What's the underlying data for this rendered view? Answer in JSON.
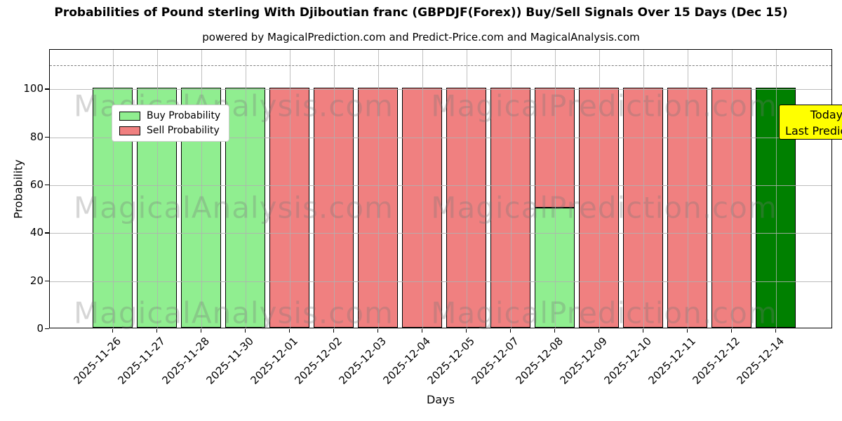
{
  "figure": {
    "title": "Probabilities of Pound sterling With Djiboutian franc (GBPDJF(Forex)) Buy/Sell Signals Over 15 Days (Dec 15)",
    "subtitle": "powered by MagicalPrediction.com and Predict-Price.com and MagicalAnalysis.com",
    "xlabel": "Days",
    "ylabel": "Probability",
    "annotation": {
      "line1": "Today",
      "line2": "Last Prediction",
      "bg_color": "#ffff00"
    },
    "watermarks": [
      "MagicalAnalysis.com",
      "MagicalPrediction.com"
    ]
  },
  "chart_data": {
    "type": "bar",
    "stacked": true,
    "title": "Probabilities of Pound sterling With Djiboutian franc (GBPDJF(Forex)) Buy/Sell Signals Over 15 Days (Dec 15)",
    "xlabel": "Days",
    "ylabel": "Probability",
    "categories": [
      "2025-11-26",
      "2025-11-27",
      "2025-11-28",
      "2025-11-30",
      "2025-12-01",
      "2025-12-02",
      "2025-12-03",
      "2025-12-04",
      "2025-12-05",
      "2025-12-07",
      "2025-12-08",
      "2025-12-09",
      "2025-12-10",
      "2025-12-11",
      "2025-12-12",
      "2025-12-14"
    ],
    "series": [
      {
        "name": "Buy Probability",
        "color": "#90ee90",
        "values": [
          100,
          100,
          100,
          100,
          0,
          0,
          0,
          0,
          0,
          0,
          50,
          0,
          0,
          0,
          0,
          0
        ]
      },
      {
        "name": "Sell Probability",
        "color": "#f08080",
        "values": [
          0,
          0,
          0,
          0,
          100,
          100,
          100,
          100,
          100,
          100,
          50,
          100,
          100,
          100,
          100,
          0
        ]
      },
      {
        "name": "Today Last Prediction",
        "color": "#008000",
        "in_legend": false,
        "values": [
          0,
          0,
          0,
          0,
          0,
          0,
          0,
          0,
          0,
          0,
          0,
          0,
          0,
          0,
          0,
          100
        ]
      }
    ],
    "legend_entries": [
      {
        "label": "Buy Probability",
        "color": "#90ee90"
      },
      {
        "label": "Sell Probability",
        "color": "#f08080"
      }
    ],
    "legend_position": "upper left",
    "yticks": [
      0,
      20,
      40,
      60,
      80,
      100
    ],
    "ylim": [
      0,
      116.5
    ],
    "dashed_line_y": 110,
    "grid": true,
    "bar_edge_color": "#000000"
  }
}
